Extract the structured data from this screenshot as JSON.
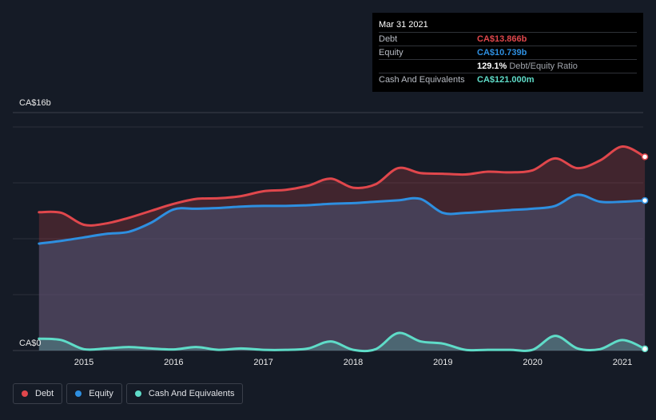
{
  "colors": {
    "debt": "#e0474c",
    "equity": "#2e8fe0",
    "cash": "#5fdcc8",
    "background": "#151b26"
  },
  "tooltip": {
    "date": "Mar 31 2021",
    "rows": [
      {
        "label": "Debt",
        "value": "CA$13.866b",
        "color": "#e0474c",
        "sub": ""
      },
      {
        "label": "Equity",
        "value": "CA$10.739b",
        "color": "#2e8fe0",
        "sub": ""
      },
      {
        "label": "",
        "value": "129.1%",
        "color": "#ffffff",
        "sub": "Debt/Equity Ratio"
      },
      {
        "label": "Cash And Equivalents",
        "value": "CA$121.000m",
        "color": "#5fdcc8",
        "sub": ""
      }
    ]
  },
  "legend": [
    {
      "label": "Debt",
      "color": "#e0474c"
    },
    {
      "label": "Equity",
      "color": "#2e8fe0"
    },
    {
      "label": "Cash And Equivalents",
      "color": "#5fdcc8"
    }
  ],
  "chart_data": {
    "type": "area",
    "title": "",
    "xlabel": "",
    "ylabel": "",
    "ylim": [
      0,
      16
    ],
    "yunit": "CA$ billions",
    "y_tick_labels": [
      {
        "value": 16,
        "label": "CA$16b"
      },
      {
        "value": 0,
        "label": "CA$0"
      }
    ],
    "x_ticks": [
      2015,
      2016,
      2017,
      2018,
      2019,
      2020,
      2021
    ],
    "grid": true,
    "legend_position": "bottom-left",
    "series": [
      {
        "name": "Debt",
        "color": "#e0474c",
        "x": [
          2014.5,
          2014.75,
          2015.0,
          2015.25,
          2015.5,
          2015.75,
          2016.0,
          2016.25,
          2016.5,
          2016.75,
          2017.0,
          2017.25,
          2017.5,
          2017.75,
          2018.0,
          2018.25,
          2018.5,
          2018.75,
          2019.0,
          2019.25,
          2019.5,
          2019.75,
          2020.0,
          2020.25,
          2020.5,
          2020.75,
          2021.0,
          2021.25
        ],
        "values": [
          9.9,
          9.85,
          9.0,
          9.1,
          9.5,
          10.0,
          10.5,
          10.85,
          10.9,
          11.05,
          11.4,
          11.5,
          11.8,
          12.3,
          11.65,
          11.9,
          13.05,
          12.7,
          12.65,
          12.6,
          12.8,
          12.75,
          12.9,
          13.75,
          13.05,
          13.6,
          14.6,
          13.866
        ]
      },
      {
        "name": "Equity",
        "color": "#2e8fe0",
        "x": [
          2014.5,
          2014.75,
          2015.0,
          2015.25,
          2015.5,
          2015.75,
          2016.0,
          2016.25,
          2016.5,
          2016.75,
          2017.0,
          2017.25,
          2017.5,
          2017.75,
          2018.0,
          2018.25,
          2018.5,
          2018.75,
          2019.0,
          2019.25,
          2019.5,
          2019.75,
          2020.0,
          2020.25,
          2020.5,
          2020.75,
          2021.0,
          2021.25
        ],
        "values": [
          7.65,
          7.85,
          8.1,
          8.35,
          8.5,
          9.15,
          10.1,
          10.15,
          10.2,
          10.3,
          10.35,
          10.35,
          10.4,
          10.5,
          10.55,
          10.65,
          10.75,
          10.85,
          9.85,
          9.85,
          9.95,
          10.05,
          10.15,
          10.35,
          11.15,
          10.65,
          10.65,
          10.739
        ]
      },
      {
        "name": "Cash And Equivalents",
        "color": "#5fdcc8",
        "x": [
          2014.5,
          2014.75,
          2015.0,
          2015.25,
          2015.5,
          2015.75,
          2016.0,
          2016.25,
          2016.5,
          2016.75,
          2017.0,
          2017.25,
          2017.5,
          2017.75,
          2018.0,
          2018.25,
          2018.5,
          2018.75,
          2019.0,
          2019.25,
          2019.5,
          2019.75,
          2020.0,
          2020.25,
          2020.5,
          2020.75,
          2021.0,
          2021.25
        ],
        "values": [
          0.85,
          0.75,
          0.1,
          0.15,
          0.25,
          0.15,
          0.08,
          0.25,
          0.05,
          0.15,
          0.05,
          0.05,
          0.15,
          0.65,
          0.05,
          0.1,
          1.25,
          0.65,
          0.5,
          0.05,
          0.05,
          0.05,
          0.05,
          1.05,
          0.15,
          0.1,
          0.75,
          0.121
        ]
      }
    ]
  }
}
